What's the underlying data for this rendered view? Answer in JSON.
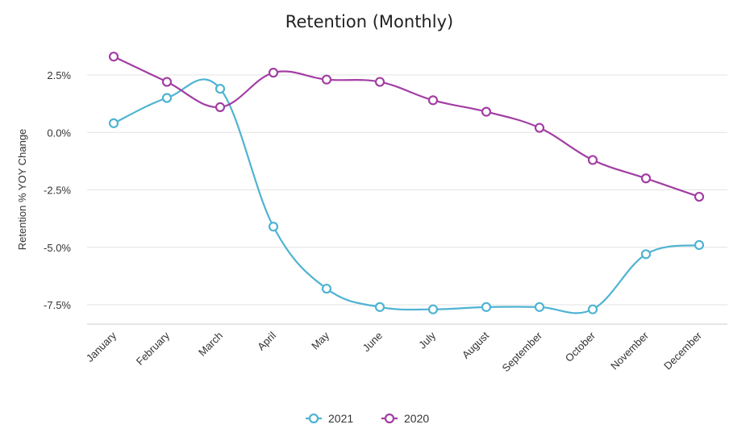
{
  "chart_data": {
    "type": "line",
    "title": "Retention (Monthly)",
    "xlabel": "",
    "ylabel": "Retention % YOY Change",
    "categories": [
      "January",
      "February",
      "March",
      "April",
      "May",
      "June",
      "July",
      "August",
      "September",
      "October",
      "November",
      "December"
    ],
    "y_ticks": [
      2.5,
      0.0,
      -2.5,
      -5.0,
      -7.5
    ],
    "y_tick_labels": [
      "2.5%",
      "0.0%",
      "-2.5%",
      "-5.0%",
      "-7.5%"
    ],
    "ylim": [
      -8.0,
      3.2
    ],
    "grid": true,
    "legend_position": "bottom-center",
    "series": [
      {
        "name": "2021",
        "color": "#4fb3d2",
        "values": [
          0.4,
          1.5,
          1.9,
          -4.1,
          -6.8,
          -7.6,
          -7.7,
          -7.6,
          -7.6,
          -7.7,
          -5.3,
          -4.9
        ]
      },
      {
        "name": "2020",
        "color": "#a23ea3",
        "values": [
          3.3,
          2.2,
          1.1,
          2.6,
          2.3,
          2.2,
          1.4,
          0.9,
          0.2,
          -1.2,
          -2.0,
          -2.8
        ]
      }
    ]
  }
}
